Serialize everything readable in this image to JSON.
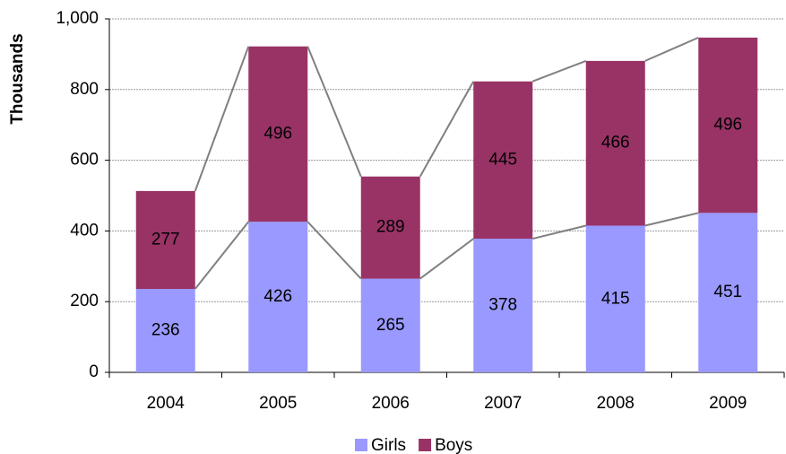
{
  "chart_data": {
    "type": "stacked_bar",
    "y_label": "Thousands",
    "categories": [
      "2004",
      "2005",
      "2006",
      "2007",
      "2008",
      "2009"
    ],
    "series": [
      {
        "name": "Girls",
        "color": "#9999ff",
        "values": [
          236,
          426,
          265,
          378,
          415,
          451
        ]
      },
      {
        "name": "Boys",
        "color": "#993366",
        "values": [
          277,
          496,
          289,
          445,
          466,
          496
        ]
      }
    ],
    "ylim": [
      0,
      1000
    ],
    "yticks": [
      0,
      200,
      400,
      600,
      800,
      {
        "value": 1000,
        "label": "1,000"
      }
    ],
    "grid": true,
    "series_lines": true,
    "legend": "bottom"
  }
}
